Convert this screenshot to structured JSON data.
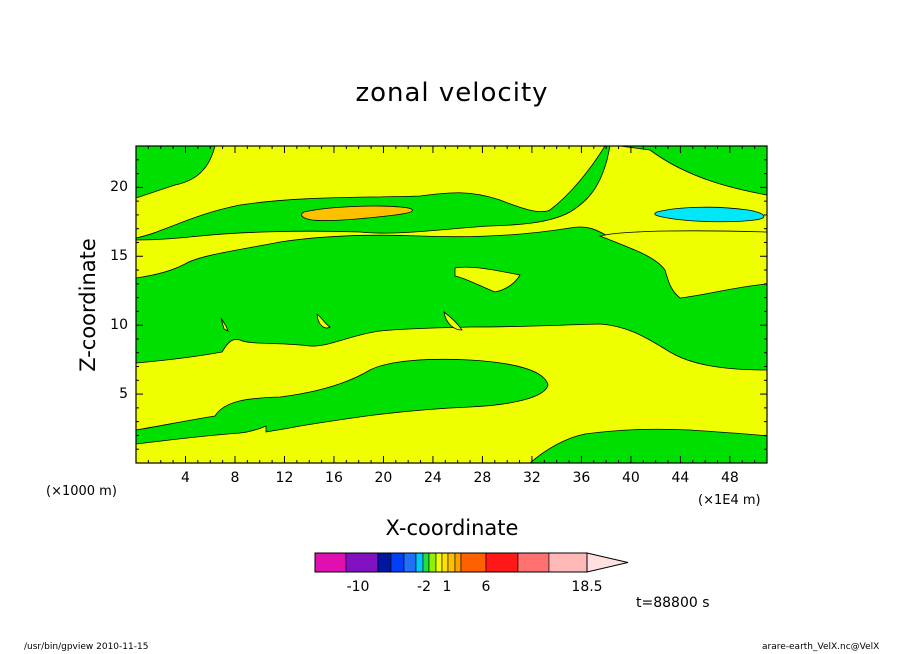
{
  "title": "zonal velocity",
  "x_axis_label": "X-coordinate",
  "y_axis_label": "Z-coordinate",
  "x_unit_left": "(×1000 m)",
  "x_unit_right": "(×1E4 m)",
  "time_label": "t=88800 s",
  "footer_left": "/usr/bin/gpview  2010-11-15",
  "footer_right": "arare-earth_VelX.nc@VelX",
  "colors": {
    "negative_small": "#00e000",
    "positive_small": "#f0ff00",
    "orange_level": "#ffc000",
    "cyan_level": "#00e8f8"
  },
  "colorbar": {
    "colors": [
      "#e010b0",
      "#8010c0",
      "#0018a0",
      "#0040f8",
      "#00c8f8",
      "#20e040",
      "#f0ff00",
      "#ffe000",
      "#ffc000",
      "#ffa000",
      "#ff6000",
      "#ff1818",
      "#ff7070",
      "#ffb8b8",
      "#ffe0e0"
    ],
    "labels": [
      "-10",
      "-2",
      "1",
      "6",
      "18.5"
    ]
  },
  "chart_data": {
    "type": "heatmap",
    "title": "zonal velocity",
    "xlabel": "X-coordinate",
    "ylabel": "Z-coordinate",
    "x_ticks": [
      "4",
      "8",
      "12",
      "16",
      "20",
      "24",
      "28",
      "32",
      "36",
      "40",
      "44",
      "48"
    ],
    "y_ticks": [
      "5",
      "10",
      "15",
      "20"
    ],
    "xlim": [
      0,
      51
    ],
    "ylim": [
      0,
      23
    ],
    "x_unit": "(×1000 m)",
    "x_unit_alt": "(×1E4 m)",
    "contour_regions": [
      {
        "level": "yellow (0 to 1)",
        "color": "#f0ff00",
        "description": "background positive region"
      },
      {
        "level": "green (-2 to 0)",
        "color": "#00e000",
        "description": "negative bands"
      },
      {
        "level": "orange (3 to 6)",
        "color": "#ffc000",
        "description": "max near x=17, z=18"
      },
      {
        "level": "cyan (-4 to -2)",
        "color": "#00e8f8",
        "description": "min near x=47, z=18"
      }
    ],
    "time": "t=88800 s"
  }
}
